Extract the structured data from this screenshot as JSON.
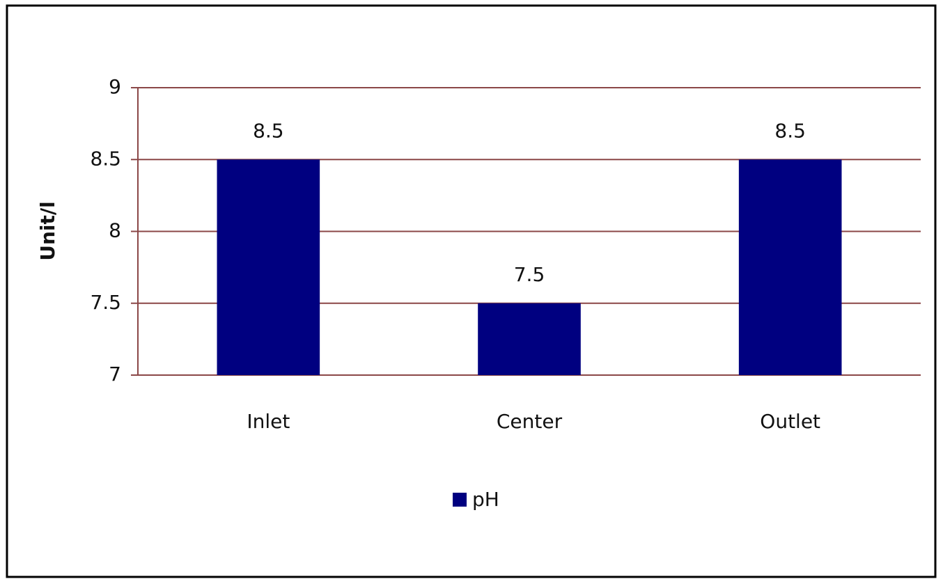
{
  "chart_data": {
    "type": "bar",
    "y_label": "Unit/l",
    "categories": [
      "Inlet",
      "Center",
      "Outlet"
    ],
    "series": [
      {
        "name": "pH",
        "color": "#000080",
        "values": [
          8.5,
          7.5,
          8.5
        ]
      }
    ],
    "ylim": [
      7,
      9
    ],
    "yticks": [
      7,
      7.5,
      8,
      8.5,
      9
    ],
    "grid": true,
    "legend": "bottom",
    "grid_color": "#8b4747"
  }
}
